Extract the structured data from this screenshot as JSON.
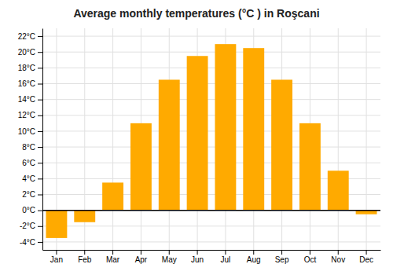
{
  "chart_data": {
    "type": "bar",
    "title": "Average monthly temperatures (°C ) in Roşcani",
    "categories": [
      "Jan",
      "Feb",
      "Mar",
      "Apr",
      "May",
      "Jun",
      "Jul",
      "Aug",
      "Sep",
      "Oct",
      "Nov",
      "Dec"
    ],
    "values": [
      -3.5,
      -1.5,
      3.5,
      11.0,
      16.5,
      19.5,
      21.0,
      20.5,
      16.5,
      11.0,
      5.0,
      -0.5
    ],
    "color": "#FFAA00",
    "ylim": [
      -5.0,
      23.0
    ],
    "yticks": [
      {
        "value": -4,
        "label": "-4°C"
      },
      {
        "value": -2,
        "label": "-2°C"
      },
      {
        "value": 0,
        "label": "0°C"
      },
      {
        "value": 2,
        "label": "2°C"
      },
      {
        "value": 4,
        "label": "4°C"
      },
      {
        "value": 6,
        "label": "6°C"
      },
      {
        "value": 8,
        "label": "8°C"
      },
      {
        "value": 10,
        "label": "10°C"
      },
      {
        "value": 12,
        "label": "12°C"
      },
      {
        "value": 14,
        "label": "14°C"
      },
      {
        "value": 16,
        "label": "16°C"
      },
      {
        "value": 18,
        "label": "18°C"
      },
      {
        "value": 20,
        "label": "20°C"
      },
      {
        "value": 22,
        "label": "22°C"
      }
    ],
    "grid": true
  }
}
